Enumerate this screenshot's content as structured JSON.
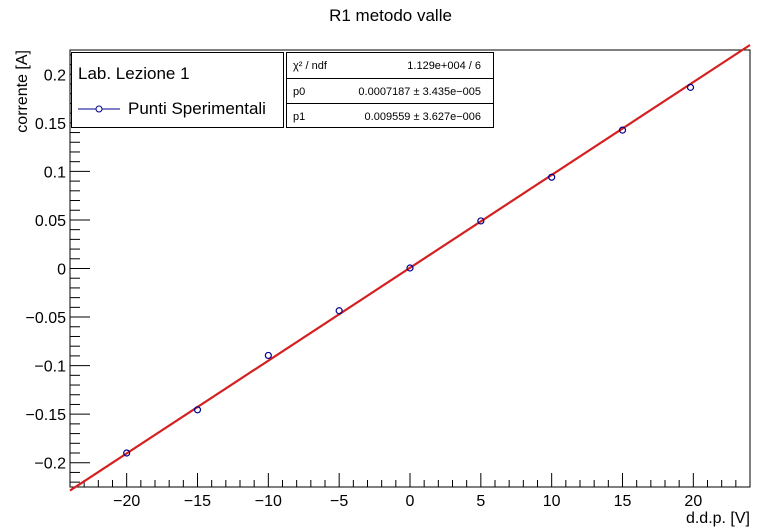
{
  "chart_data": {
    "type": "scatter",
    "title_line1": "",
    "title_line2": "R1 metodo valle",
    "xlabel": "d.d.p. [V]",
    "ylabel": "corrente [A]",
    "xlim": [
      -24,
      24
    ],
    "ylim": [
      -0.225,
      0.225
    ],
    "x_ticks": [
      -20,
      -15,
      -10,
      -5,
      0,
      5,
      10,
      15,
      20
    ],
    "y_ticks": [
      -0.2,
      -0.15,
      -0.1,
      -0.05,
      0,
      0.05,
      0.1,
      0.15,
      0.2
    ],
    "x_tick_labels": [
      "−20",
      "−15",
      "−10",
      "−5",
      "0",
      "5",
      "10",
      "15",
      "20"
    ],
    "y_tick_labels": [
      "−0.2",
      "−0.15",
      "−0.1",
      "−0.05",
      "0",
      "0.05",
      "0.1",
      "0.15",
      "0.2"
    ],
    "grid": false,
    "series": [
      {
        "name": "Punti Sperimentali",
        "color": "#00008b",
        "x": [
          -20,
          -15,
          -10,
          -5,
          0,
          5,
          10,
          15,
          19.8
        ],
        "y": [
          -0.19,
          -0.1455,
          -0.0895,
          -0.0435,
          0.0005,
          0.049,
          0.094,
          0.1425,
          0.1865
        ]
      }
    ],
    "fit": {
      "color": "#d42020",
      "p0": 0.0007187,
      "p1": 0.009559,
      "xrange": [
        -24,
        24
      ]
    },
    "legend": {
      "placement": "top-left",
      "title": "Lab. Lezione 1"
    },
    "stats": [
      {
        "name": "χ² / ndf",
        "value": "1.129e+004 / 6"
      },
      {
        "name": "p0",
        "value": "0.0007187 ± 3.435e−005"
      },
      {
        "name": "p1",
        "value": "0.009559 ± 3.627e−006"
      }
    ]
  }
}
